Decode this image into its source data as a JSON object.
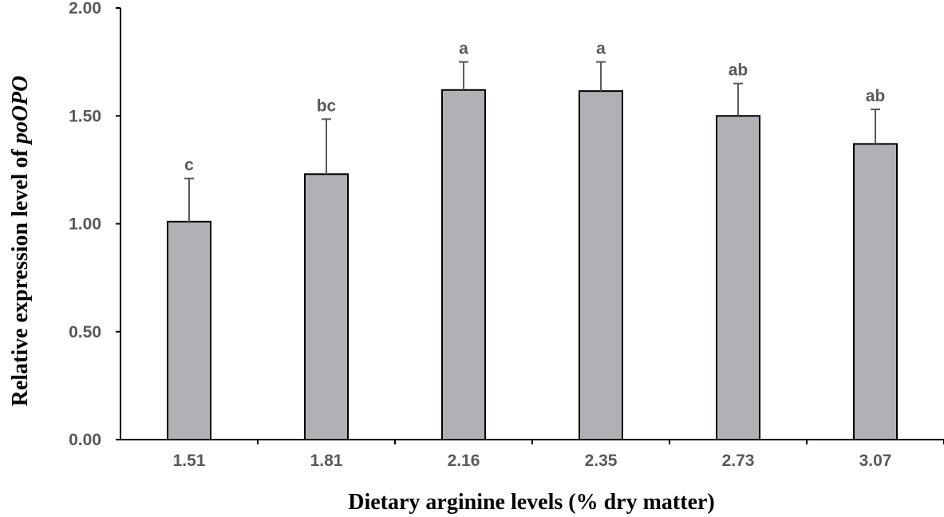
{
  "chart_data": {
    "type": "bar",
    "categories": [
      "1.51",
      "1.81",
      "2.16",
      "2.35",
      "2.73",
      "3.07"
    ],
    "values": [
      1.01,
      1.23,
      1.62,
      1.615,
      1.5,
      1.37
    ],
    "error_upper": [
      0.2,
      0.255,
      0.13,
      0.135,
      0.15,
      0.16
    ],
    "significance_letters": [
      "c",
      "bc",
      "a",
      "a",
      "ab",
      "ab"
    ],
    "xlabel": "Dietary arginine levels (% dry matter)",
    "ylabel_prefix": "Relative expression level of ",
    "ylabel_gene": "poOPO",
    "ylim": [
      0,
      2.0
    ],
    "yticks": [
      "0.00",
      "0.50",
      "1.00",
      "1.50",
      "2.00"
    ],
    "grid": false,
    "colors": {
      "bar_fill": "#b0b1b5",
      "bar_stroke": "#000000",
      "axis": "#000000",
      "tick_text": "#595959",
      "error_bar": "#595959"
    }
  }
}
